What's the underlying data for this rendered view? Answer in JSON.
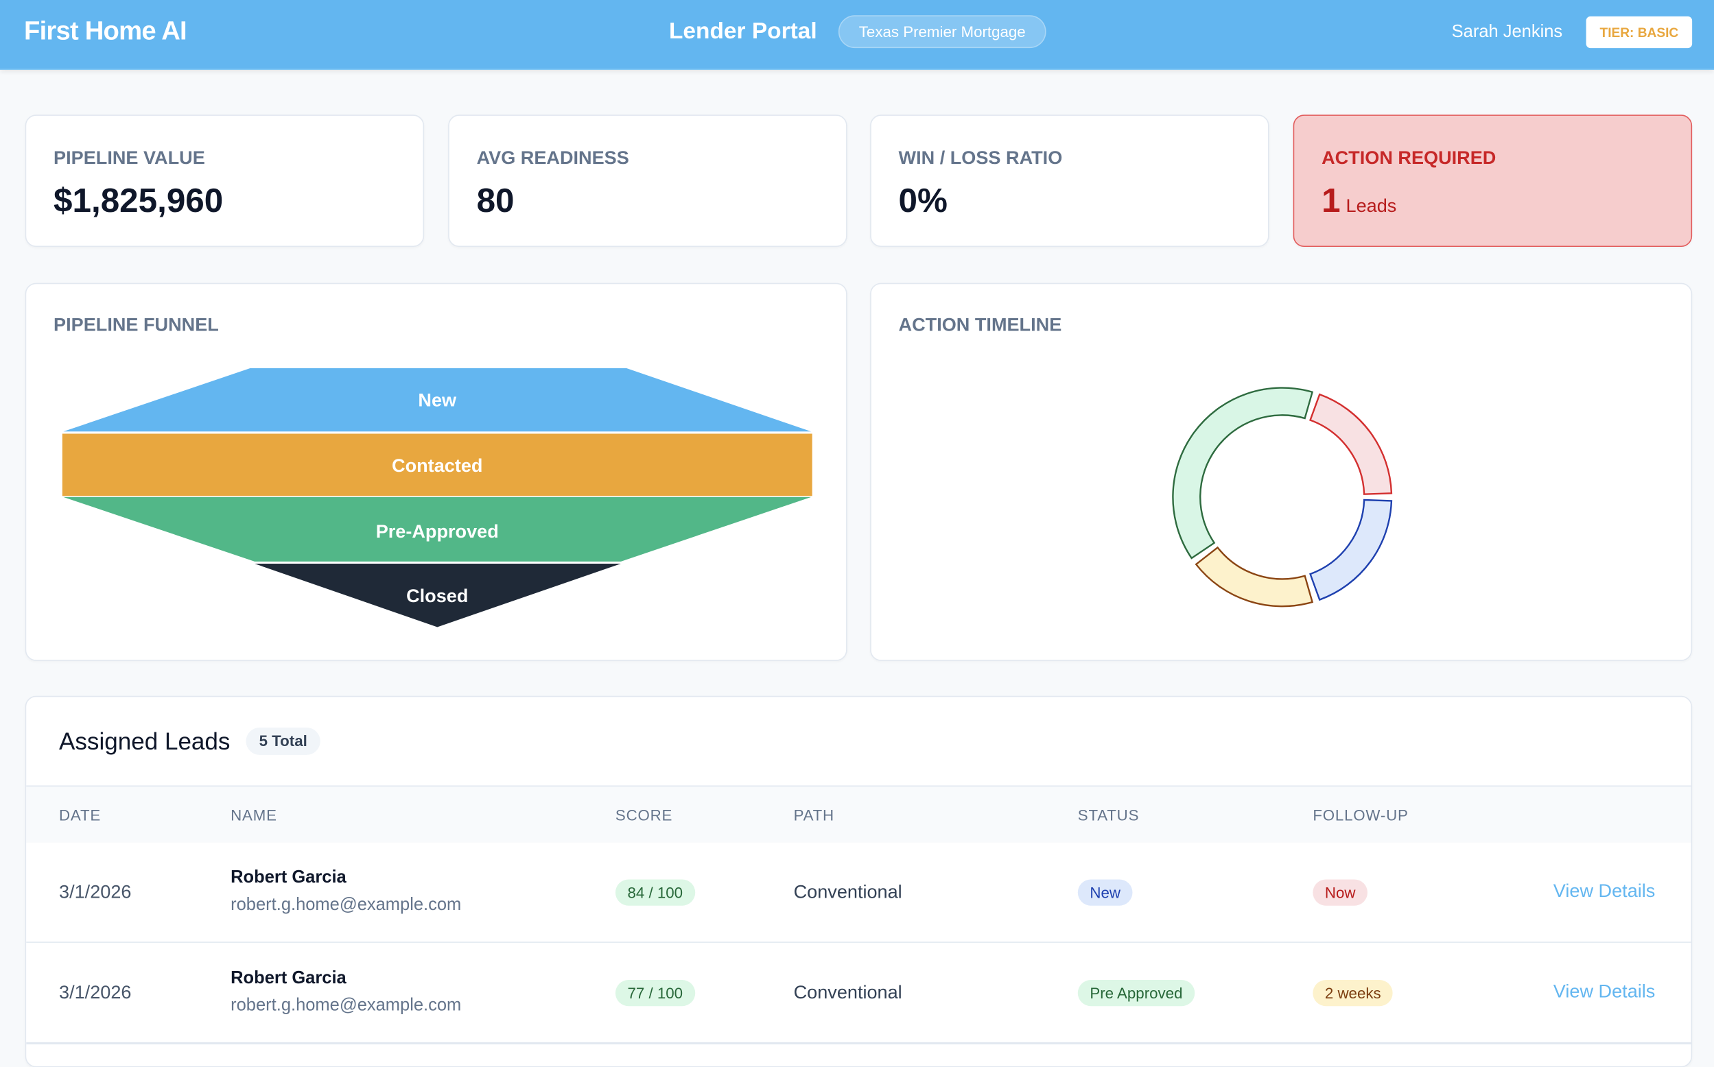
{
  "header": {
    "logo": "First Home AI",
    "portal_title": "Lender Portal",
    "lender_name": "Texas Premier Mortgage",
    "user_name": "Sarah Jenkins",
    "tier_badge": "TIER: BASIC"
  },
  "stats": [
    {
      "label": "PIPELINE VALUE",
      "value": "$1,825,960"
    },
    {
      "label": "AVG READINESS",
      "value": "80"
    },
    {
      "label": "WIN / LOSS RATIO",
      "value": "0%"
    },
    {
      "label": "ACTION REQUIRED",
      "value": "1",
      "unit": "Leads"
    }
  ],
  "funnel": {
    "title": "PIPELINE FUNNEL",
    "stages": [
      {
        "label": "New",
        "color": "#63b6f0"
      },
      {
        "label": "Contacted",
        "color": "#e8a73f"
      },
      {
        "label": "Pre-Approved",
        "color": "#52b788"
      },
      {
        "label": "Closed",
        "color": "#1f2937"
      }
    ]
  },
  "timeline": {
    "title": "ACTION TIMELINE",
    "chart_data": {
      "type": "pie",
      "variant": "donut",
      "values": [
        1,
        1,
        1,
        2
      ],
      "fills": [
        "#f8e1e3",
        "#dde8fb",
        "#fdf2cc",
        "#d9f6e6"
      ],
      "strokes": [
        "#d32f2f",
        "#1e40af",
        "#8b4513",
        "#2e6b3f"
      ]
    }
  },
  "leads": {
    "title": "Assigned Leads",
    "total_badge": "5 Total",
    "columns": [
      "DATE",
      "NAME",
      "SCORE",
      "PATH",
      "STATUS",
      "FOLLOW-UP"
    ],
    "rows": [
      {
        "date": "3/1/2026",
        "name": "Robert Garcia",
        "email": "robert.g.home@example.com",
        "score": "84 / 100",
        "path": "Conventional",
        "status": "New",
        "followup": "Now",
        "action": "View Details"
      },
      {
        "date": "3/1/2026",
        "name": "Robert Garcia",
        "email": "robert.g.home@example.com",
        "score": "77 / 100",
        "path": "Conventional",
        "status": "Pre Approved",
        "followup": "2 weeks",
        "action": "View Details"
      }
    ]
  }
}
